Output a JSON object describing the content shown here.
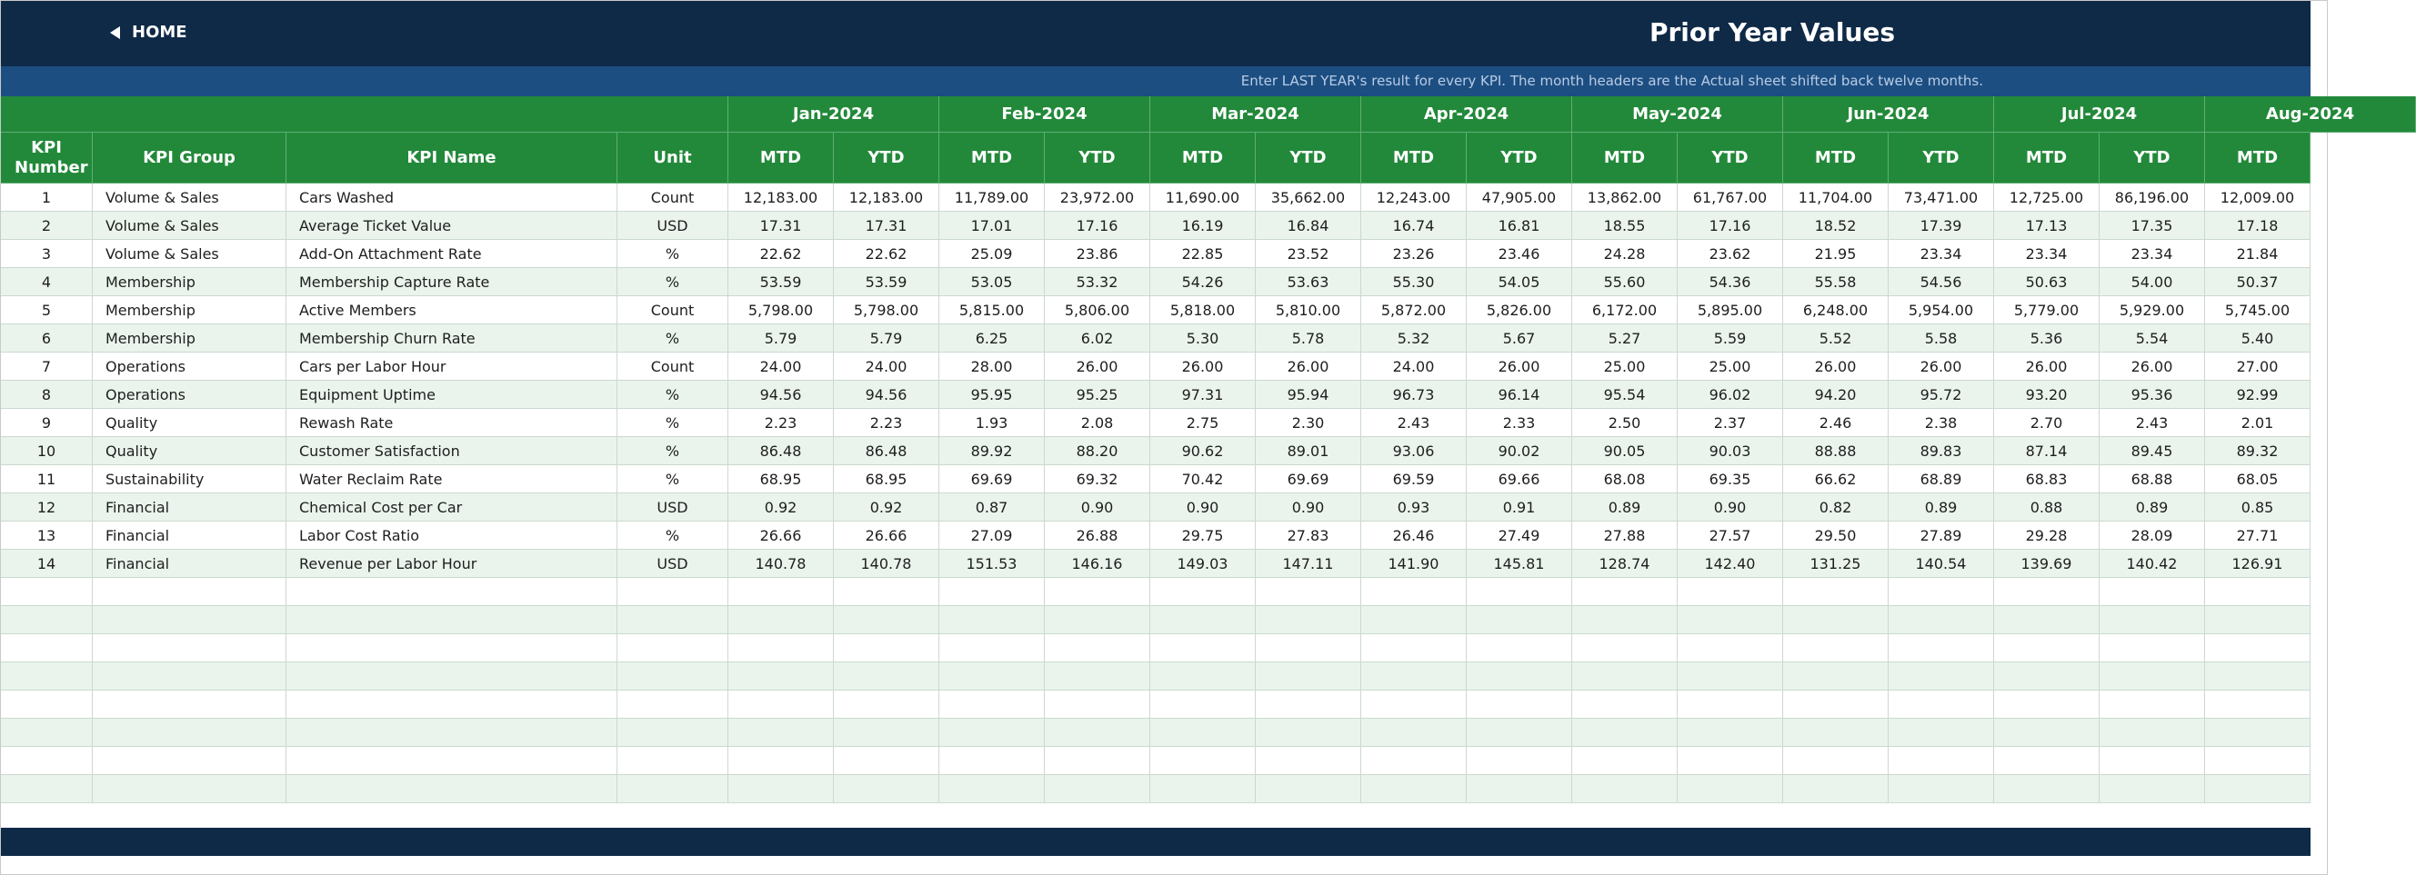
{
  "header": {
    "home": "HOME",
    "title": "Prior Year Values",
    "instruction": "Enter LAST YEAR's result for every KPI. The month headers are the Actual sheet shifted back twelve months."
  },
  "table": {
    "columns": [
      "KPI Number",
      "KPI Group",
      "KPI Name",
      "Unit"
    ],
    "months": [
      {
        "label": "Jan-2024",
        "columns": [
          "MTD",
          "YTD"
        ]
      },
      {
        "label": "Feb-2024",
        "columns": [
          "MTD",
          "YTD"
        ]
      },
      {
        "label": "Mar-2024",
        "columns": [
          "MTD",
          "YTD"
        ]
      },
      {
        "label": "Apr-2024",
        "columns": [
          "MTD",
          "YTD"
        ]
      },
      {
        "label": "May-2024",
        "columns": [
          "MTD",
          "YTD"
        ]
      },
      {
        "label": "Jun-2024",
        "columns": [
          "MTD",
          "YTD"
        ]
      },
      {
        "label": "Jul-2024",
        "columns": [
          "MTD",
          "YTD"
        ]
      },
      {
        "label": "Aug-2024",
        "columns": [
          "MTD"
        ]
      }
    ],
    "rows": [
      [
        "1",
        "Volume & Sales",
        "Cars Washed",
        "Count",
        "12,183.00",
        "12,183.00",
        "11,789.00",
        "23,972.00",
        "11,690.00",
        "35,662.00",
        "12,243.00",
        "47,905.00",
        "13,862.00",
        "61,767.00",
        "11,704.00",
        "73,471.00",
        "12,725.00",
        "86,196.00",
        "12,009.00"
      ],
      [
        "2",
        "Volume & Sales",
        "Average Ticket Value",
        "USD",
        "17.31",
        "17.31",
        "17.01",
        "17.16",
        "16.19",
        "16.84",
        "16.74",
        "16.81",
        "18.55",
        "17.16",
        "18.52",
        "17.39",
        "17.13",
        "17.35",
        "17.18"
      ],
      [
        "3",
        "Volume & Sales",
        "Add-On Attachment Rate",
        "%",
        "22.62",
        "22.62",
        "25.09",
        "23.86",
        "22.85",
        "23.52",
        "23.26",
        "23.46",
        "24.28",
        "23.62",
        "21.95",
        "23.34",
        "23.34",
        "23.34",
        "21.84"
      ],
      [
        "4",
        "Membership",
        "Membership Capture Rate",
        "%",
        "53.59",
        "53.59",
        "53.05",
        "53.32",
        "54.26",
        "53.63",
        "55.30",
        "54.05",
        "55.60",
        "54.36",
        "55.58",
        "54.56",
        "50.63",
        "54.00",
        "50.37"
      ],
      [
        "5",
        "Membership",
        "Active Members",
        "Count",
        "5,798.00",
        "5,798.00",
        "5,815.00",
        "5,806.00",
        "5,818.00",
        "5,810.00",
        "5,872.00",
        "5,826.00",
        "6,172.00",
        "5,895.00",
        "6,248.00",
        "5,954.00",
        "5,779.00",
        "5,929.00",
        "5,745.00"
      ],
      [
        "6",
        "Membership",
        "Membership Churn Rate",
        "%",
        "5.79",
        "5.79",
        "6.25",
        "6.02",
        "5.30",
        "5.78",
        "5.32",
        "5.67",
        "5.27",
        "5.59",
        "5.52",
        "5.58",
        "5.36",
        "5.54",
        "5.40"
      ],
      [
        "7",
        "Operations",
        "Cars per Labor Hour",
        "Count",
        "24.00",
        "24.00",
        "28.00",
        "26.00",
        "26.00",
        "26.00",
        "24.00",
        "26.00",
        "25.00",
        "25.00",
        "26.00",
        "26.00",
        "26.00",
        "26.00",
        "27.00"
      ],
      [
        "8",
        "Operations",
        "Equipment Uptime",
        "%",
        "94.56",
        "94.56",
        "95.95",
        "95.25",
        "97.31",
        "95.94",
        "96.73",
        "96.14",
        "95.54",
        "96.02",
        "94.20",
        "95.72",
        "93.20",
        "95.36",
        "92.99"
      ],
      [
        "9",
        "Quality",
        "Rewash Rate",
        "%",
        "2.23",
        "2.23",
        "1.93",
        "2.08",
        "2.75",
        "2.30",
        "2.43",
        "2.33",
        "2.50",
        "2.37",
        "2.46",
        "2.38",
        "2.70",
        "2.43",
        "2.01"
      ],
      [
        "10",
        "Quality",
        "Customer Satisfaction",
        "%",
        "86.48",
        "86.48",
        "89.92",
        "88.20",
        "90.62",
        "89.01",
        "93.06",
        "90.02",
        "90.05",
        "90.03",
        "88.88",
        "89.83",
        "87.14",
        "89.45",
        "89.32"
      ],
      [
        "11",
        "Sustainability",
        "Water Reclaim Rate",
        "%",
        "68.95",
        "68.95",
        "69.69",
        "69.32",
        "70.42",
        "69.69",
        "69.59",
        "69.66",
        "68.08",
        "69.35",
        "66.62",
        "68.89",
        "68.83",
        "68.88",
        "68.05"
      ],
      [
        "12",
        "Financial",
        "Chemical Cost per Car",
        "USD",
        "0.92",
        "0.92",
        "0.87",
        "0.90",
        "0.90",
        "0.90",
        "0.93",
        "0.91",
        "0.89",
        "0.90",
        "0.82",
        "0.89",
        "0.88",
        "0.89",
        "0.85"
      ],
      [
        "13",
        "Financial",
        "Labor Cost Ratio",
        "%",
        "26.66",
        "26.66",
        "27.09",
        "26.88",
        "29.75",
        "27.83",
        "26.46",
        "27.49",
        "27.88",
        "27.57",
        "29.50",
        "27.89",
        "29.28",
        "28.09",
        "27.71"
      ],
      [
        "14",
        "Financial",
        "Revenue per Labor Hour",
        "USD",
        "140.78",
        "140.78",
        "151.53",
        "146.16",
        "149.03",
        "147.11",
        "141.90",
        "145.81",
        "128.74",
        "142.40",
        "131.25",
        "140.54",
        "139.69",
        "140.42",
        "126.91"
      ]
    ]
  }
}
